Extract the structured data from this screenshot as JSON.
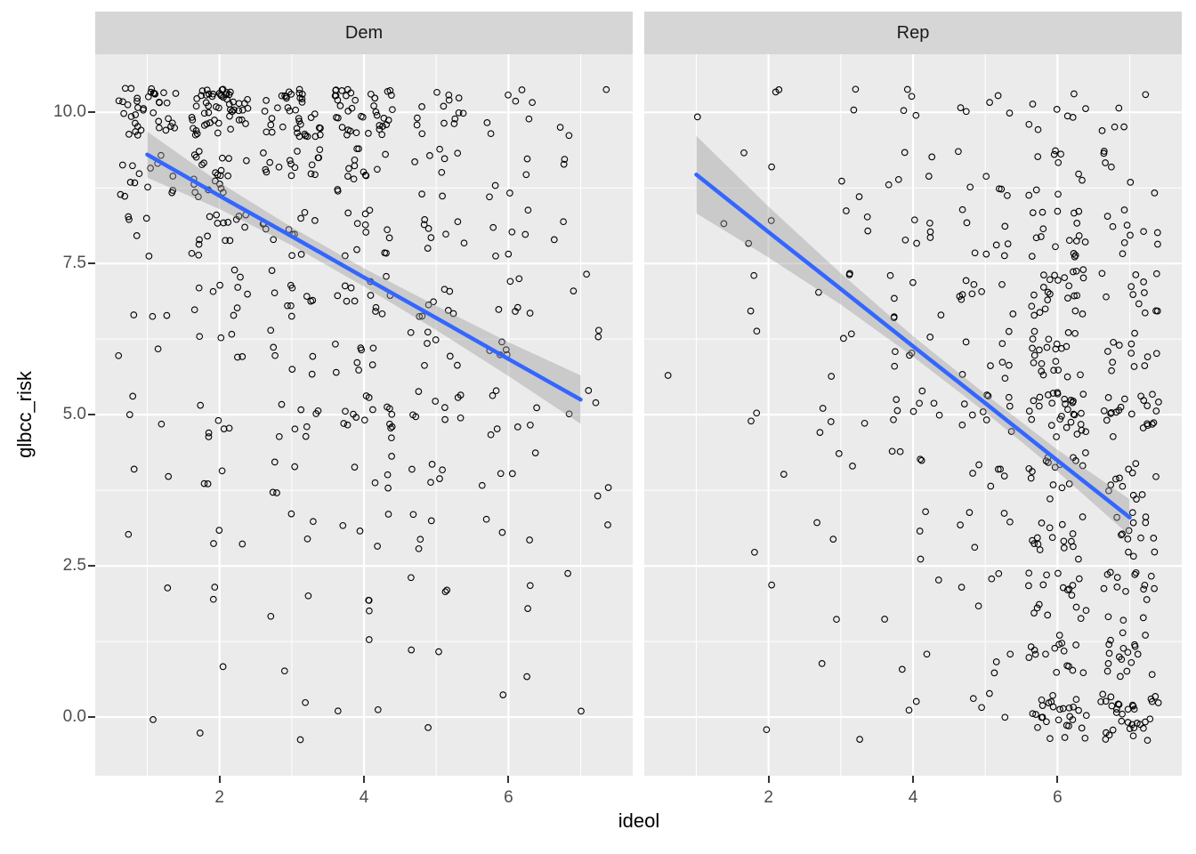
{
  "chart_data": {
    "type": "scatter",
    "title": "",
    "xlabel": "ideol",
    "ylabel": "glbcc_risk",
    "legend": "none",
    "grid": true,
    "x_domain": [
      0.28,
      7.72
    ],
    "y_domain": [
      -0.97,
      10.96
    ],
    "x_ticks": [
      {
        "v": 2,
        "label": "2"
      },
      {
        "v": 4,
        "label": "4"
      },
      {
        "v": 6,
        "label": "6"
      }
    ],
    "y_ticks": [
      {
        "v": 0,
        "label": "0.0"
      },
      {
        "v": 2.5,
        "label": "2.5"
      },
      {
        "v": 5,
        "label": "5.0"
      },
      {
        "v": 7.5,
        "label": "7.5"
      },
      {
        "v": 10,
        "label": "10.0"
      }
    ],
    "x_minor": [
      1,
      3,
      5,
      7
    ],
    "y_minor": [
      1.25,
      3.75,
      6.25,
      8.75
    ],
    "jitter": {
      "width": 0.4,
      "height": 0.4
    },
    "point_style": {
      "shape": "open-circle",
      "radius": 3.3,
      "stroke_width": 1.1
    },
    "ideol_levels": [
      1,
      2,
      3,
      4,
      5,
      6,
      7
    ],
    "risk_levels": [
      0,
      1,
      2,
      3,
      4,
      5,
      6,
      7,
      8,
      9,
      10
    ],
    "facets": [
      {
        "label": "Dem",
        "seed": 42,
        "counts": [
          [
            1,
            0,
            1,
            1,
            2,
            3,
            2,
            3,
            5,
            14,
            38
          ],
          [
            1,
            1,
            2,
            3,
            3,
            6,
            5,
            10,
            16,
            22,
            55
          ],
          [
            2,
            1,
            2,
            3,
            4,
            8,
            6,
            10,
            12,
            16,
            38
          ],
          [
            2,
            1,
            3,
            4,
            5,
            16,
            8,
            12,
            12,
            14,
            40
          ],
          [
            1,
            2,
            3,
            4,
            5,
            9,
            7,
            8,
            8,
            8,
            14
          ],
          [
            1,
            1,
            2,
            3,
            4,
            7,
            5,
            6,
            6,
            5,
            7
          ],
          [
            1,
            0,
            1,
            1,
            2,
            3,
            2,
            2,
            2,
            2,
            3
          ]
        ],
        "trend": {
          "x": [
            1,
            2,
            3,
            4,
            5,
            6,
            7
          ],
          "y": [
            9.3,
            8.62,
            7.95,
            7.27,
            6.6,
            5.92,
            5.25
          ]
        },
        "band": {
          "x": [
            1,
            2,
            3,
            4,
            5,
            6,
            7
          ],
          "lo": [
            8.92,
            8.4,
            7.8,
            7.12,
            6.4,
            5.64,
            4.85
          ],
          "hi": [
            9.68,
            8.84,
            8.1,
            7.42,
            6.8,
            6.2,
            5.65
          ]
        }
      },
      {
        "label": "Rep",
        "seed": 7,
        "counts": [
          [
            0,
            0,
            0,
            0,
            0,
            0,
            1,
            0,
            1,
            0,
            1
          ],
          [
            1,
            0,
            1,
            1,
            1,
            2,
            1,
            2,
            2,
            2,
            2
          ],
          [
            1,
            1,
            1,
            2,
            2,
            4,
            3,
            3,
            3,
            2,
            2
          ],
          [
            2,
            2,
            2,
            3,
            4,
            8,
            5,
            6,
            6,
            5,
            4
          ],
          [
            4,
            3,
            4,
            5,
            6,
            10,
            8,
            9,
            8,
            6,
            5
          ],
          [
            28,
            16,
            18,
            16,
            16,
            30,
            22,
            24,
            18,
            10,
            8
          ],
          [
            34,
            18,
            16,
            14,
            12,
            22,
            12,
            12,
            10,
            6,
            5
          ]
        ],
        "trend": {
          "x": [
            1,
            2,
            3,
            4,
            5,
            6,
            7
          ],
          "y": [
            8.97,
            8.02,
            7.08,
            6.13,
            5.19,
            4.24,
            3.3
          ]
        },
        "band": {
          "x": [
            1,
            2,
            3,
            4,
            5,
            6,
            7
          ],
          "lo": [
            8.33,
            7.6,
            6.82,
            5.96,
            5.04,
            4.06,
            3.0
          ],
          "hi": [
            9.61,
            8.44,
            7.34,
            6.3,
            5.34,
            4.42,
            3.6
          ]
        }
      }
    ],
    "colors": {
      "page_bg": "#FFFFFF",
      "panel_bg": "#EBEBEB",
      "strip_bg": "#D6D6D6",
      "strip_text": "#1A1A1A",
      "grid": "#FFFFFF",
      "tick_mark": "#333333",
      "tick_text": "#4D4D4D",
      "axis_title": "#000000",
      "point_stroke": "#000000",
      "trend_line": "#3366FF",
      "band_fill": "#999999",
      "band_opacity": 0.4
    }
  }
}
